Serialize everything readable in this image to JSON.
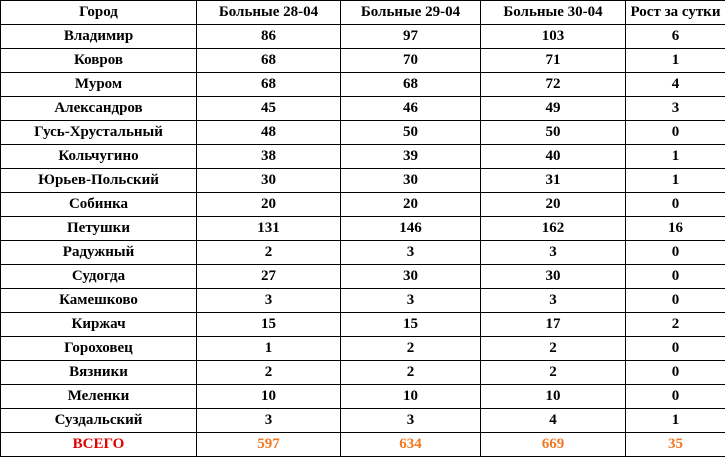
{
  "table": {
    "header": [
      "Город",
      "Больные 28-04",
      "Больные 29-04",
      "Больные 30-04",
      "Рост за сутки"
    ],
    "rows": [
      [
        "Владимир",
        86,
        97,
        103,
        6
      ],
      [
        "Ковров",
        68,
        70,
        71,
        1
      ],
      [
        "Муром",
        68,
        68,
        72,
        4
      ],
      [
        "Александров",
        45,
        46,
        49,
        3
      ],
      [
        "Гусь-Хрустальный",
        48,
        50,
        50,
        0
      ],
      [
        "Кольчугино",
        38,
        39,
        40,
        1
      ],
      [
        "Юрьев-Польский",
        30,
        30,
        31,
        1
      ],
      [
        "Собинка",
        20,
        20,
        20,
        0
      ],
      [
        "Петушки",
        131,
        146,
        162,
        16
      ],
      [
        "Радужный",
        2,
        3,
        3,
        0
      ],
      [
        "Судогда",
        27,
        30,
        30,
        0
      ],
      [
        "Камешково",
        3,
        3,
        3,
        0
      ],
      [
        "Киржач",
        15,
        15,
        17,
        2
      ],
      [
        "Гороховец",
        1,
        2,
        2,
        0
      ],
      [
        "Вязники",
        2,
        2,
        2,
        0
      ],
      [
        "Меленки",
        10,
        10,
        10,
        0
      ],
      [
        "Суздальский",
        3,
        3,
        4,
        1
      ]
    ],
    "total": [
      "ВСЕГО",
      597,
      634,
      669,
      35
    ]
  }
}
